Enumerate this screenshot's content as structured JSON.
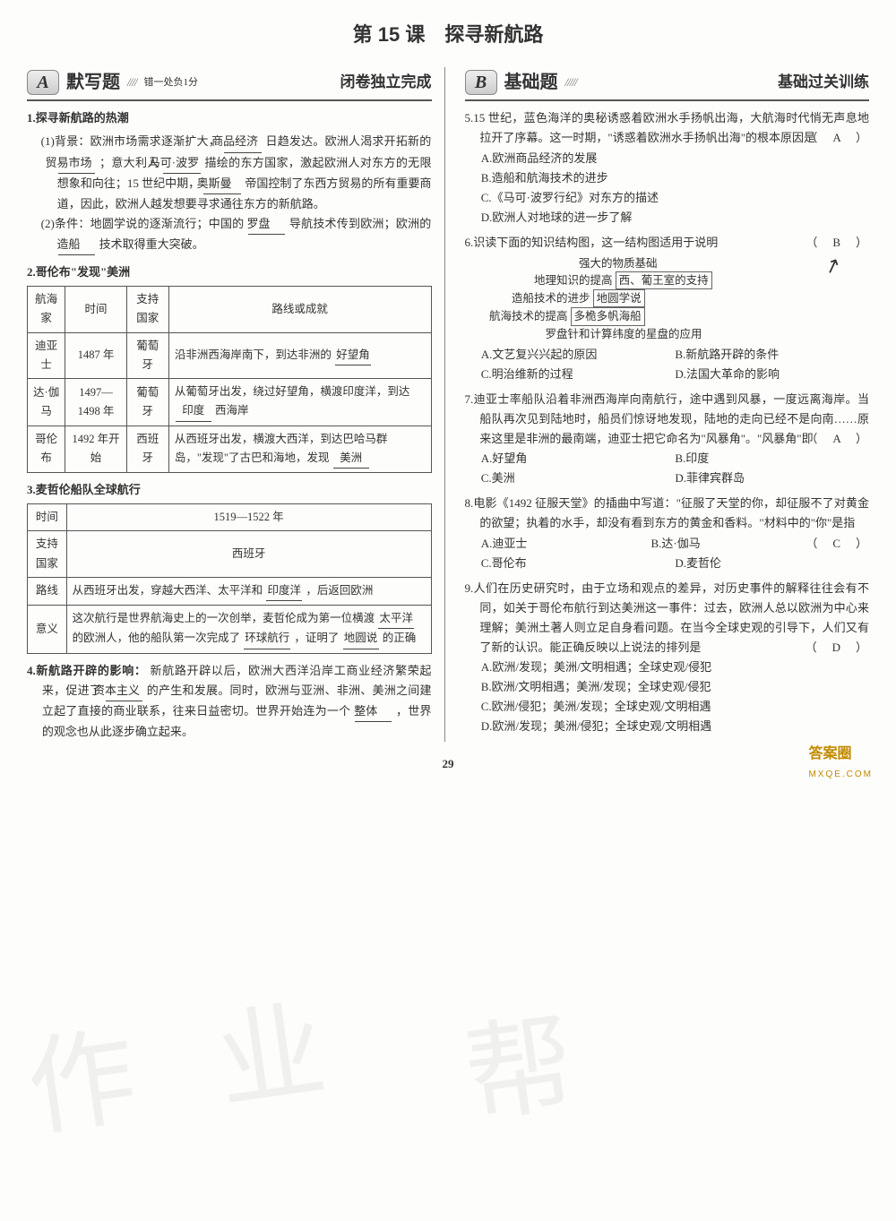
{
  "title": "第 15 课　探寻新航路",
  "left": {
    "badge": {
      "letter": "A",
      "title": "默写题",
      "sub": "错一处负1分",
      "right": "闭卷独立完成"
    },
    "h1": "1.探寻新航路的热潮",
    "p1a": "(1)背景：欧洲市场需求逐渐扩大，",
    "b1": "商品经济",
    "p1b": " 日趋发达。欧洲人渴求开拓新的 ",
    "b2": "贸易市场",
    "p1c": " ；意大利人 ",
    "b3": "马可·波罗",
    "p1d": " 描绘的东方国家，激起欧洲人对东方的无限想象和向往；15 世纪中期，",
    "b4": "奥斯曼",
    "p1e": " 帝国控制了东西方贸易的所有重要商道，因此，欧洲人越发想要寻求通往东方的新航路。",
    "p2a": "(2)条件：地圆学说的逐渐流行；中国的 ",
    "b5": "罗盘",
    "p2b": " 导航技术传到欧洲；欧洲的 ",
    "b6": "造船",
    "p2c": " 技术取得重大突破。",
    "h2": "2.哥伦布\"发现\"美洲",
    "table1": {
      "headers": [
        "航海家",
        "时间",
        "支持国家",
        "路线或成就"
      ],
      "rows": [
        {
          "c0": "迪亚士",
          "c1": "1487 年",
          "c2": "葡萄牙",
          "c3a": "沿非洲西海岸南下，到达非洲的 ",
          "b": "好望角",
          "c3b": ""
        },
        {
          "c0": "达·伽马",
          "c1": "1497—1498 年",
          "c2": "葡萄牙",
          "c3a": "从葡萄牙出发，绕过好望角，横渡印度洋，到达 ",
          "b": "印度",
          "c3b": " 西海岸"
        },
        {
          "c0": "哥伦布",
          "c1": "1492 年开始",
          "c2": "西班牙",
          "c3a": "从西班牙出发，横渡大西洋，到达巴哈马群岛，\"发现\"了古巴和海地，发现 ",
          "b": "美洲",
          "c3b": ""
        }
      ]
    },
    "h3": "3.麦哲伦船队全球航行",
    "table2": {
      "r1k": "时间",
      "r1v": "1519—1522 年",
      "r2k": "支持国家",
      "r2v": "西班牙",
      "r3k": "路线",
      "r3a": "从西班牙出发，穿越大西洋、太平洋和 ",
      "r3b": "印度洋",
      "r3c": "，后返回欧洲",
      "r4k": "意义",
      "r4a": "这次航行是世界航海史上的一次创举，麦哲伦成为第一位横渡 ",
      "r4b": "太平洋",
      "r4c": " 的欧洲人，他的船队第一次完成了 ",
      "r4d": "环球航行",
      "r4e": "，证明了 ",
      "r4f": "地圆说",
      "r4g": " 的正确"
    },
    "h4": "4.新航路开辟的影响：",
    "p4a": "新航路开辟以后，欧洲大西洋沿岸工商业经济繁荣起来，促进了 ",
    "b7": "资本主义",
    "p4b": " 的产生和发展。同时，欧洲与亚洲、非洲、美洲之间建立起了直接的商业联系，往来日益密切。世界开始连为一个 ",
    "b8": "整体",
    "p4c": "，世界的观念也从此逐步确立起来。"
  },
  "right": {
    "badge": {
      "letter": "B",
      "title": "基础题",
      "right": "基础过关训练"
    },
    "q5": {
      "text": "5.15 世纪，蓝色海洋的奥秘诱惑着欧洲水手扬帆出海，大航海时代悄无声息地拉开了序幕。这一时期，\"诱惑着欧洲水手扬帆出海\"的根本原因是",
      "ans": "（　A　）",
      "A": "A.欧洲商品经济的发展",
      "B": "B.造船和航海技术的进步",
      "C": "C.《马可·波罗行纪》对东方的描述",
      "D": "D.欧洲人对地球的进一步了解"
    },
    "q6": {
      "text": "6.识读下面的知识结构图，这一结构图适用于说明",
      "ans": "（　B　）",
      "d1": "强大的物质基础",
      "d2a": "地理知识的提高",
      "d2b": "西、葡王室的支持",
      "d3a": "造船技术的进步",
      "d3b": "地圆学说",
      "d4a": "航海技术的提高",
      "d4b": "多桅多帆海船",
      "d5": "罗盘针和计算纬度的星盘的应用",
      "A": "A.文艺复兴兴起的原因",
      "B": "B.新航路开辟的条件",
      "C": "C.明治维新的过程",
      "D": "D.法国大革命的影响"
    },
    "q7": {
      "text": "7.迪亚士率船队沿着非洲西海岸向南航行，途中遇到风暴，一度远离海岸。当船队再次见到陆地时，船员们惊讶地发现，陆地的走向已经不是向南……原来这里是非洲的最南端，迪亚士把它命名为\"风暴角\"。\"风暴角\"即",
      "ans": "（　A　）",
      "A": "A.好望角",
      "B": "B.印度",
      "C": "C.美洲",
      "D": "D.菲律宾群岛"
    },
    "q8": {
      "text": "8.电影《1492 征服天堂》的插曲中写道：\"征服了天堂的你，却征服不了对黄金的欲望；执着的水手，却没有看到东方的黄金和香料。\"材料中的\"你\"是指",
      "ans": "（　C　）",
      "A": "A.迪亚士",
      "B": "B.达·伽马",
      "C": "C.哥伦布",
      "D": "D.麦哲伦"
    },
    "q9": {
      "text": "9.人们在历史研究时，由于立场和观点的差异，对历史事件的解释往往会有不同，如关于哥伦布航行到达美洲这一事件：过去，欧洲人总以欧洲为中心来理解；美洲土著人则立足自身看问题。在当今全球史观的引导下，人们又有了新的认识。能正确反映以上说法的排列是",
      "ans": "（　D　）",
      "A": "A.欧洲/发现；美洲/文明相遇；全球史观/侵犯",
      "B": "B.欧洲/文明相遇；美洲/发现；全球史观/侵犯",
      "C": "C.欧洲/侵犯；美洲/发现；全球史观/文明相遇",
      "D": "D.欧洲/发现；美洲/侵犯；全球史观/文明相遇"
    }
  },
  "pagenum": "29",
  "corner": {
    "big": "答案圈",
    "small": "MXQE.COM"
  }
}
